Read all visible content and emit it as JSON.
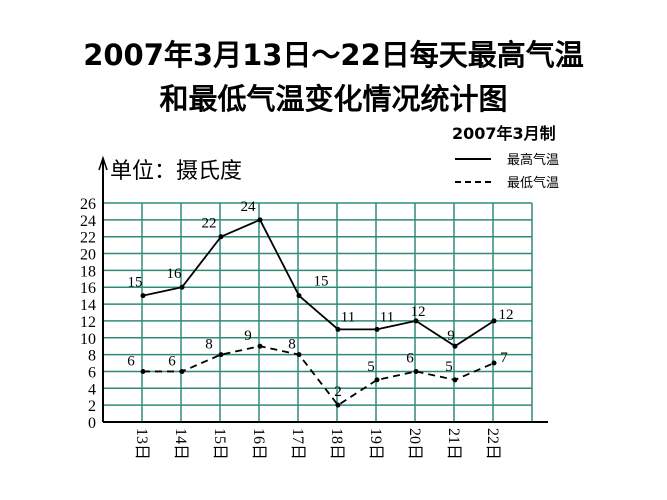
{
  "title_line1": "2007年3月13日～22日每天最高气温",
  "title_line2": "和最低气温变化情况统计图",
  "made": "2007年3月制",
  "unit": "单位：摄氏度",
  "chart_data": {
    "type": "line",
    "title": "2007年3月13日～22日每天最高气温和最低气温变化情况统计图",
    "ylabel": "单位：摄氏度",
    "categories": [
      "13日",
      "14日",
      "15日",
      "16日",
      "17日",
      "18日",
      "19日",
      "20日",
      "21日",
      "22日"
    ],
    "yticks": [
      0,
      2,
      4,
      6,
      8,
      10,
      12,
      14,
      16,
      18,
      20,
      22,
      24,
      26
    ],
    "ylim": [
      0,
      26
    ],
    "grid": true,
    "legend_position": "top-right",
    "series": [
      {
        "name": "最高气温",
        "style": "solid",
        "values": [
          15,
          16,
          22,
          24,
          15,
          11,
          11,
          12,
          9,
          12
        ]
      },
      {
        "name": "最低气温",
        "style": "dashed",
        "values": [
          6,
          6,
          8,
          9,
          8,
          2,
          5,
          6,
          5,
          7
        ]
      }
    ]
  },
  "colors": {
    "grid": "#2e8b7a",
    "line": "#000000"
  }
}
